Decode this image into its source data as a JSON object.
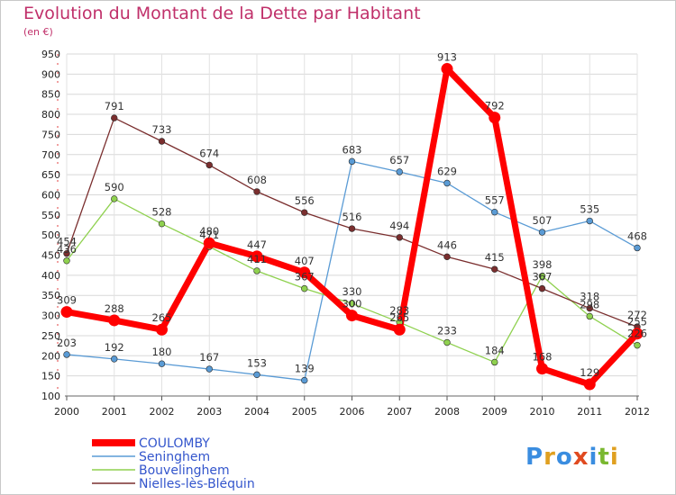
{
  "title": "Evolution du Montant de la Dette par Habitant",
  "subtitle": "(en €)",
  "brand": {
    "text": "Proxiti",
    "letters": [
      "P",
      "r",
      "o",
      "x",
      "i",
      "t",
      "i"
    ],
    "colors": [
      "#3a8de0",
      "#e0a020",
      "#3a8de0",
      "#e04a20",
      "#3a8de0",
      "#7ab830",
      "#e0a020"
    ]
  },
  "chart_data": {
    "type": "line",
    "x": [
      "2000",
      "2001",
      "2002",
      "2003",
      "2004",
      "2005",
      "2006",
      "2007",
      "2008",
      "2009",
      "2010",
      "2011",
      "2012"
    ],
    "ylim": [
      100,
      950
    ],
    "yticks": [
      100,
      150,
      200,
      250,
      300,
      350,
      400,
      450,
      500,
      550,
      600,
      650,
      700,
      750,
      800,
      850,
      900,
      950
    ],
    "grid": true,
    "legend_position": "bottom-left",
    "series": [
      {
        "name": "Seninghem",
        "color": "#5a9bd5",
        "values": [
          203,
          192,
          180,
          167,
          153,
          139,
          683,
          657,
          629,
          557,
          507,
          535,
          468
        ]
      },
      {
        "name": "Bouvelinghem",
        "color": "#8fd14f",
        "values": [
          436,
          590,
          528,
          471,
          411,
          367,
          330,
          283,
          233,
          184,
          398,
          298,
          226
        ]
      },
      {
        "name": "Nielles-lès-Bléquin",
        "color": "#7a2e2e",
        "values": [
          454,
          791,
          733,
          674,
          608,
          556,
          516,
          494,
          446,
          415,
          367,
          318,
          272
        ]
      },
      {
        "name": "COULOMBY",
        "color": "#ff0000",
        "values": [
          309,
          288,
          265,
          480,
          447,
          407,
          300,
          265,
          913,
          792,
          168,
          129,
          255
        ],
        "bold": true
      }
    ]
  }
}
